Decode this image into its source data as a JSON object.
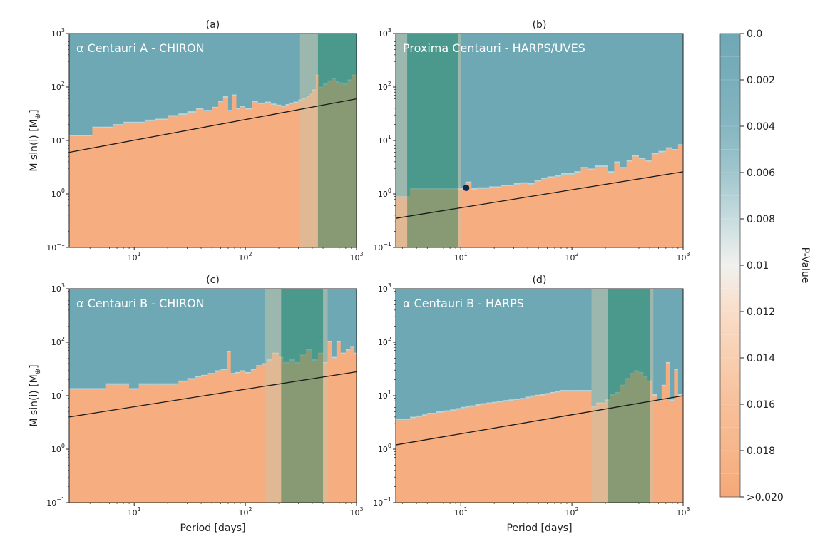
{
  "chart_data": {
    "type": "heatmap",
    "xlabel": "Period [days]",
    "ylabel_main": "M sin(i) [M",
    "ylabel_sub": "⊕",
    "ylabel_close": "]",
    "x_log_range": [
      2.6,
      1000
    ],
    "y_log_range": [
      0.1,
      1000
    ],
    "x_ticks": [
      {
        "base": "10",
        "exp": "1",
        "value": 10
      },
      {
        "base": "10",
        "exp": "2",
        "value": 100
      },
      {
        "base": "10",
        "exp": "3",
        "value": 1000
      }
    ],
    "y_ticks": [
      {
        "base": "10",
        "exp": "−1",
        "value": 0.1
      },
      {
        "base": "10",
        "exp": "0",
        "value": 1
      },
      {
        "base": "10",
        "exp": "1",
        "value": 10
      },
      {
        "base": "10",
        "exp": "2",
        "value": 100
      },
      {
        "base": "10",
        "exp": "3",
        "value": 1000
      }
    ],
    "colors": {
      "detectable": "#6fa8b5",
      "undetectable": "#f6ad80",
      "band_light": "#c4cdb8",
      "band_dark_over_blue": "#4e9b84",
      "band_dark_over_orange": "#9b9460",
      "band_light_over_orange": "#d6b78e",
      "trend_line": "#1a1a1a",
      "planet_dot": "#0b2a55"
    },
    "panels": [
      {
        "id": "a",
        "title": "(a)",
        "annotation": "α Centauri A - CHIRON",
        "x_min": 2.6,
        "threshold": {
          "period": [
            2.6,
            3.2,
            4.2,
            5.2,
            6.5,
            8.0,
            10.0,
            12.5,
            15.5,
            20.0,
            25.0,
            30.0,
            36.0,
            42.0,
            50.0,
            57.0,
            63.0,
            70.0,
            76.0,
            83.0,
            90.0,
            100.0,
            115.0,
            130.0,
            150.0,
            170.0,
            190.0,
            210.0,
            230.0,
            250.0,
            270.0,
            300.0,
            320.0,
            340.0,
            360.0,
            380.0,
            400.0,
            430.0,
            460.0,
            500.0,
            550.0,
            600.0,
            650.0,
            700.0,
            760.0,
            830.0,
            900.0,
            1000.0
          ],
          "msini": [
            12,
            12,
            17,
            17,
            19,
            21,
            21,
            23,
            24,
            28,
            30,
            33,
            38,
            35,
            40,
            52,
            63,
            35,
            68,
            38,
            42,
            38,
            52,
            48,
            50,
            46,
            44,
            42,
            45,
            48,
            50,
            55,
            58,
            60,
            65,
            70,
            85,
            160,
            95,
            110,
            125,
            140,
            120,
            115,
            110,
            130,
            160,
            150
          ]
        },
        "trend": {
          "p1": 2.6,
          "m1": 6.0,
          "p2": 1000,
          "m2": 60
        },
        "bands": [
          {
            "x0": 310,
            "x1": 450,
            "tone": "light"
          },
          {
            "x0": 450,
            "x1": 1000,
            "tone": "dark"
          }
        ],
        "planet": null
      },
      {
        "id": "b",
        "title": "(b)",
        "annotation": "Proxima Centauri - HARPS/UVES",
        "x_min": 2.6,
        "threshold": {
          "period": [
            2.6,
            3.0,
            3.5,
            4.2,
            5.0,
            6.0,
            7.0,
            8.0,
            9.0,
            10.0,
            11.0,
            12.5,
            14.0,
            16.0,
            18.0,
            20.0,
            23.0,
            26.0,
            30.0,
            35.0,
            40.0,
            46.0,
            53.0,
            60.0,
            70.0,
            80.0,
            92.0,
            105.0,
            120.0,
            140.0,
            160.0,
            180.0,
            210.0,
            240.0,
            270.0,
            310.0,
            350.0,
            400.0,
            460.0,
            520.0,
            600.0,
            700.0,
            800.0,
            900.0,
            1000.0
          ],
          "msini": [
            0.85,
            0.85,
            1.2,
            1.2,
            1.2,
            1.2,
            1.2,
            1.2,
            1.2,
            1.2,
            1.6,
            1.2,
            1.25,
            1.25,
            1.3,
            1.3,
            1.4,
            1.4,
            1.5,
            1.55,
            1.5,
            1.7,
            1.9,
            2.0,
            2.1,
            2.3,
            2.3,
            2.5,
            3.0,
            2.8,
            3.2,
            3.2,
            2.5,
            3.8,
            3.0,
            4.0,
            5.0,
            4.5,
            4.0,
            5.5,
            6.0,
            7.0,
            6.5,
            8.0,
            7.5
          ]
        },
        "trend": {
          "p1": 2.6,
          "m1": 0.35,
          "p2": 1000,
          "m2": 2.6
        },
        "bands": [
          {
            "x0": 2.6,
            "x1": 3.3,
            "tone": "light"
          },
          {
            "x0": 3.3,
            "x1": 9.5,
            "tone": "dark"
          },
          {
            "x0": 9.5,
            "x1": 10.0,
            "tone": "light"
          }
        ],
        "planet": {
          "period": 11.2,
          "msini": 1.3
        }
      },
      {
        "id": "c",
        "title": "(c)",
        "annotation": "α Centauri B - CHIRON",
        "x_min": 2.6,
        "threshold": {
          "period": [
            2.6,
            3.5,
            4.5,
            5.5,
            6.5,
            7.5,
            9.0,
            11.0,
            13.0,
            15.0,
            18.0,
            21.0,
            25.0,
            30.0,
            35.0,
            40.0,
            46.0,
            53.0,
            60.0,
            68.0,
            74.0,
            80.0,
            90.0,
            100.0,
            112.0,
            125.0,
            140.0,
            155.0,
            175.0,
            200.0,
            220.0,
            250.0,
            280.0,
            310.0,
            350.0,
            400.0,
            450.0,
            500.0,
            550.0,
            600.0,
            660.0,
            720.0,
            800.0,
            880.0,
            950.0,
            1000.0
          ],
          "msini": [
            13,
            13,
            13,
            16,
            16,
            16,
            13,
            16,
            16,
            16,
            16,
            16,
            18,
            20,
            22,
            23,
            25,
            28,
            30,
            65,
            25,
            26,
            28,
            26,
            30,
            35,
            38,
            45,
            60,
            50,
            40,
            45,
            40,
            55,
            70,
            45,
            60,
            40,
            100,
            50,
            100,
            60,
            70,
            80,
            60,
            40
          ]
        },
        "trend": {
          "p1": 2.6,
          "m1": 4.0,
          "p2": 1000,
          "m2": 28
        },
        "bands": [
          {
            "x0": 150,
            "x1": 210,
            "tone": "light"
          },
          {
            "x0": 210,
            "x1": 500,
            "tone": "dark"
          },
          {
            "x0": 500,
            "x1": 550,
            "tone": "light"
          }
        ],
        "planet": null
      },
      {
        "id": "d",
        "title": "(d)",
        "annotation": "α Centauri B - HARPS",
        "x_min": 2.6,
        "threshold": {
          "period": [
            2.6,
            3.0,
            3.5,
            4.0,
            4.5,
            5.0,
            5.5,
            6.0,
            7.0,
            8.0,
            9.0,
            10.0,
            11.0,
            12.0,
            13.5,
            15.0,
            17.0,
            19.0,
            21.0,
            24.0,
            27.0,
            30.0,
            34.0,
            38.0,
            42.0,
            47.0,
            52.0,
            58.0,
            64.0,
            70.0,
            78.0,
            86.0,
            95.0,
            105.0,
            120.0,
            135.0,
            150.0,
            165.0,
            180.0,
            200.0,
            220.0,
            245.0,
            270.0,
            300.0,
            330.0,
            360.0,
            400.0,
            440.0,
            480.0,
            530.0,
            580.0,
            640.0,
            700.0,
            760.0,
            830.0,
            900.0,
            1000.0
          ],
          "msini": [
            3.5,
            3.5,
            3.8,
            4.0,
            4.2,
            4.5,
            4.5,
            4.8,
            5.0,
            5.2,
            5.5,
            5.8,
            6.0,
            6.2,
            6.5,
            6.8,
            7.0,
            7.2,
            7.5,
            7.8,
            8.0,
            8.3,
            8.5,
            9.0,
            9.5,
            9.8,
            10.0,
            10.5,
            11.0,
            11.5,
            12.0,
            12.0,
            12.0,
            12.0,
            12.0,
            12.0,
            6.0,
            7.0,
            7.0,
            8.0,
            10.0,
            11.0,
            15.0,
            20.0,
            25.0,
            28.0,
            26.0,
            22.0,
            18.0,
            10.0,
            8.0,
            15.0,
            40.0,
            8.0,
            30.0,
            10.0,
            25.0
          ]
        },
        "trend": {
          "p1": 2.6,
          "m1": 1.2,
          "p2": 1000,
          "m2": 10
        },
        "bands": [
          {
            "x0": 150,
            "x1": 210,
            "tone": "light"
          },
          {
            "x0": 210,
            "x1": 500,
            "tone": "dark"
          },
          {
            "x0": 500,
            "x1": 540,
            "tone": "light"
          }
        ],
        "planet": null
      }
    ],
    "colorbar": {
      "label": "P-Value",
      "ticks": [
        "0.0",
        "0.002",
        "0.004",
        "0.006",
        "0.008",
        "0.01",
        "0.012",
        "0.014",
        "0.016",
        "0.018",
        ">0.020"
      ],
      "stops": [
        "#6fa8b5",
        "#78aebb",
        "#86b6c1",
        "#a0c6cd",
        "#c7dcdf",
        "#f1f1ee",
        "#f9ddc9",
        "#f8cfb1",
        "#f7c09a",
        "#f6b68a",
        "#f5a878"
      ]
    }
  }
}
